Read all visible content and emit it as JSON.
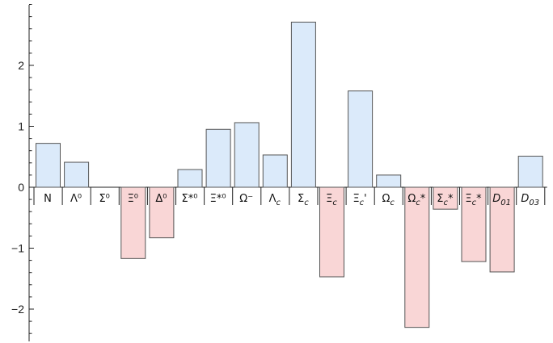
{
  "chart_data": {
    "type": "bar",
    "categories": [
      "N",
      "Λ⁰",
      "Σ⁰",
      "Ξ⁰",
      "Δ⁰",
      "Σ*⁰",
      "Ξ*⁰",
      "Ω⁻",
      "Λc",
      "Σc",
      "Ξc",
      "Ξc'",
      "Ωc",
      "Ωc*",
      "Σc*",
      "Ξc*",
      "D01",
      "D03"
    ],
    "values": [
      0.72,
      0.41,
      0.0,
      -1.17,
      -0.83,
      0.29,
      0.95,
      1.06,
      0.53,
      2.71,
      -1.47,
      1.58,
      0.2,
      -2.3,
      -0.36,
      -1.22,
      -1.39,
      0.51
    ],
    "ylim": [
      -2.55,
      3.05
    ],
    "yticks": [
      -2,
      -1,
      0,
      1,
      2
    ],
    "yticklabels": [
      "−2",
      "−1",
      "0",
      "1",
      "2"
    ],
    "minor_tick_step": 0.2,
    "grid": false,
    "legend": "none",
    "colors": {
      "positive": "#dbeafa",
      "negative": "#f9d6d6",
      "edge": "#555555"
    }
  }
}
